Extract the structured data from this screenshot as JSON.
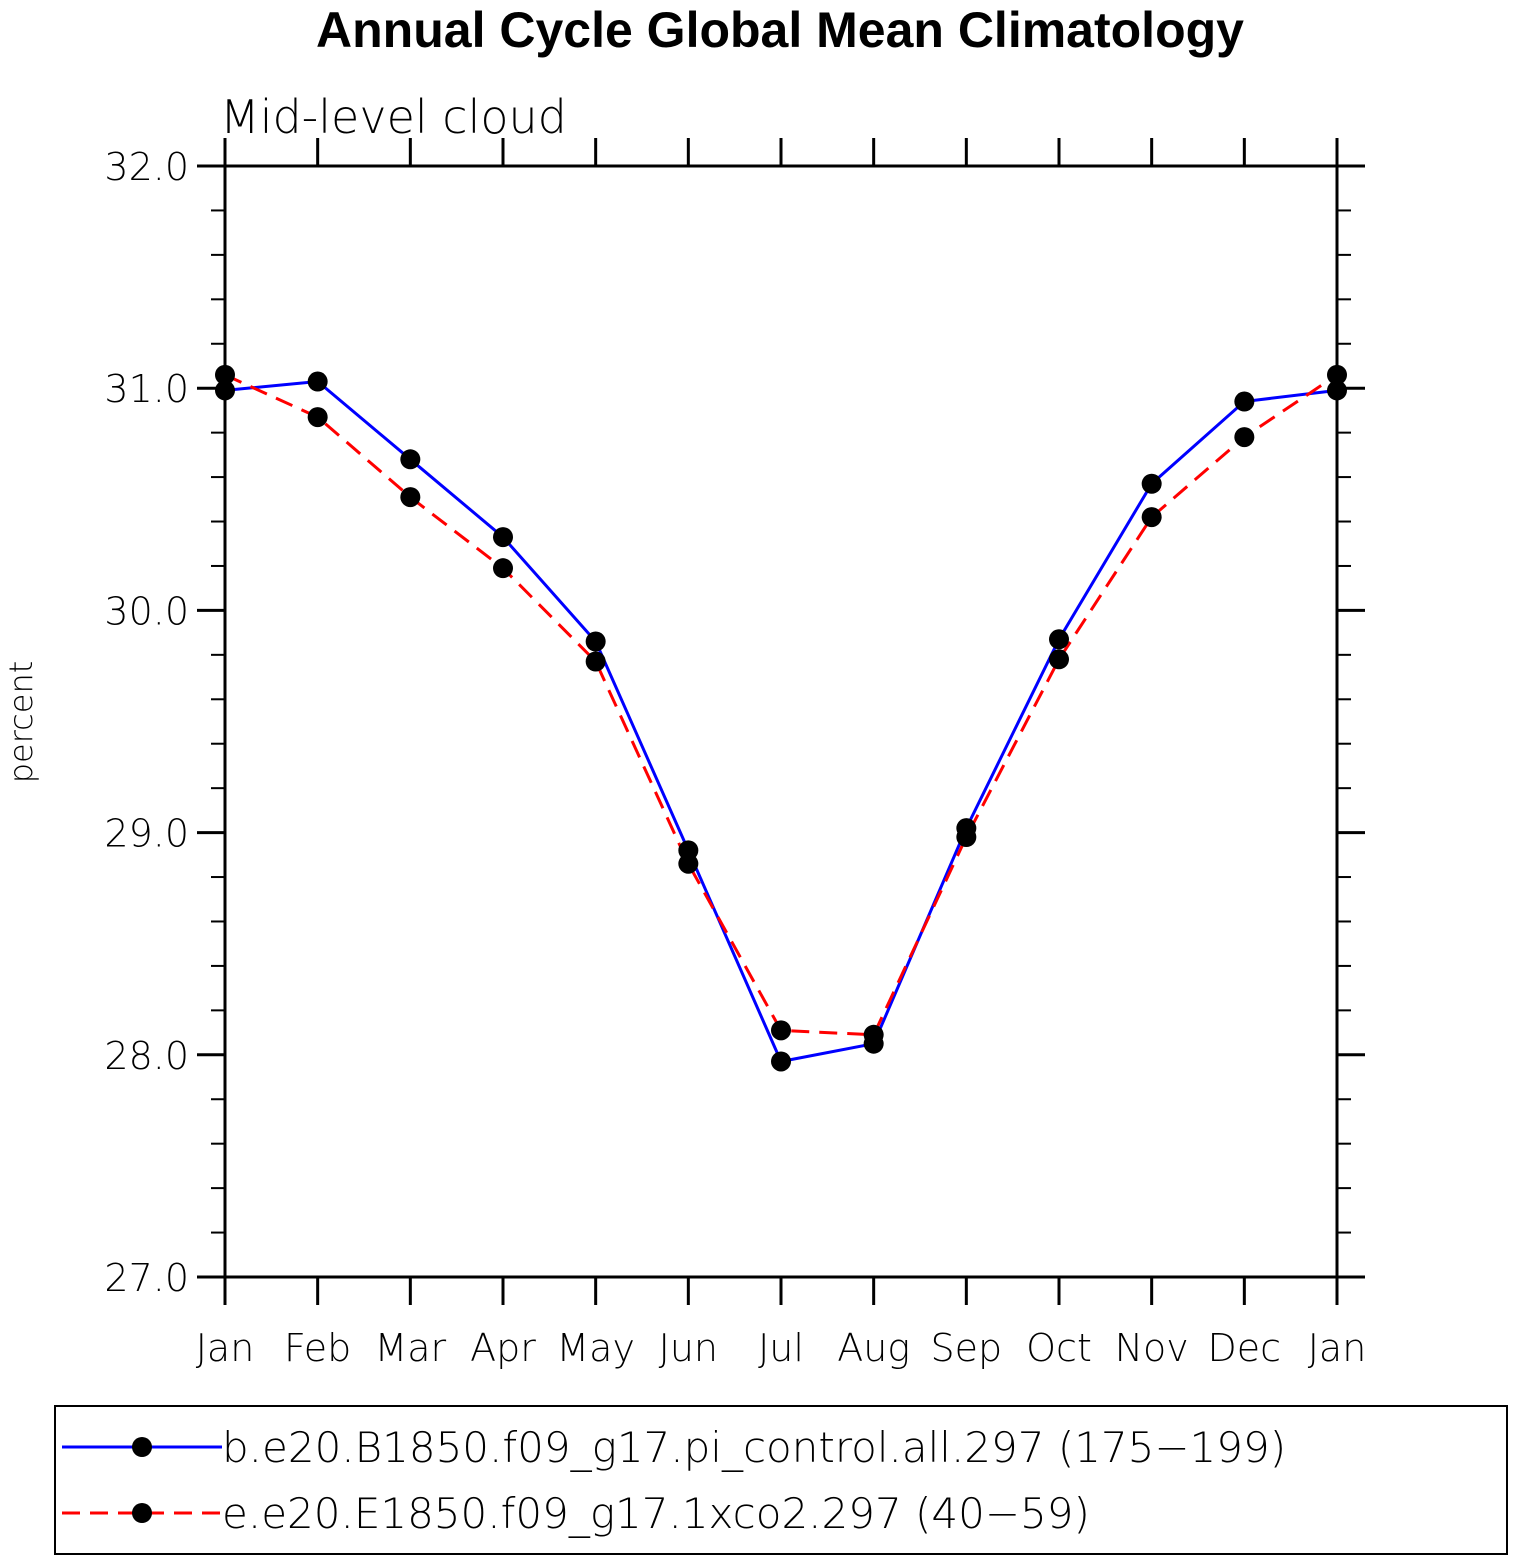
{
  "chart_data": {
    "type": "line",
    "title": "Annual Cycle Global Mean Climatology",
    "subtitle": "Mid-level cloud",
    "xlabel": "",
    "ylabel": "percent",
    "ylim": [
      27.0,
      32.0
    ],
    "yticks": [
      "27.0",
      "28.0",
      "29.0",
      "30.0",
      "31.0",
      "32.0"
    ],
    "categories": [
      "Jan",
      "Feb",
      "Mar",
      "Apr",
      "May",
      "Jun",
      "Jul",
      "Aug",
      "Sep",
      "Oct",
      "Nov",
      "Dec",
      "Jan"
    ],
    "grid": false,
    "legend": "bottom",
    "series": [
      {
        "name": "b.e20.B1850.f09_g17.pi_control.all.297 (175−199)",
        "color": "#0000ff",
        "style": "solid",
        "marker": "filled-circle",
        "values": [
          30.99,
          31.03,
          30.68,
          30.33,
          29.86,
          28.92,
          27.97,
          28.05,
          29.02,
          29.87,
          30.57,
          30.94,
          30.99
        ]
      },
      {
        "name": "e.e20.E1850.f09_g17.1xco2.297 (40−59)",
        "color": "#ff0000",
        "style": "dashed",
        "marker": "filled-circle",
        "values": [
          31.06,
          30.87,
          30.51,
          30.19,
          29.77,
          28.86,
          28.11,
          28.09,
          28.98,
          29.78,
          30.42,
          30.78,
          31.06
        ]
      }
    ]
  }
}
